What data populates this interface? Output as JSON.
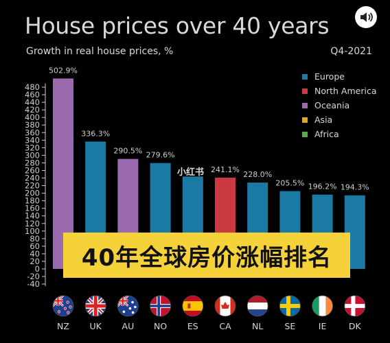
{
  "header": {
    "title": "House prices over 40 years",
    "subtitle": "Growth in real house prices, %",
    "period": "Q4-2021"
  },
  "overlay": {
    "banner_text": "40年全球房价涨幅排名",
    "watermark": "小红书"
  },
  "icons": {
    "sound": "speaker-sound-icon"
  },
  "colors": {
    "Europe": "#1a7aa4",
    "North America": "#c9393f",
    "Oceania": "#9b6bb0",
    "Asia": "#e0a526",
    "Africa": "#5aa847",
    "background": "#000000",
    "banner": "#f5d13a"
  },
  "legend": [
    {
      "label": "Europe",
      "color": "#1a7aa4"
    },
    {
      "label": "North America",
      "color": "#c9393f"
    },
    {
      "label": "Oceania",
      "color": "#9b6bb0"
    },
    {
      "label": "Asia",
      "color": "#e0a526"
    },
    {
      "label": "Africa",
      "color": "#5aa847"
    }
  ],
  "chart_data": {
    "type": "bar",
    "title": "House prices over 40 years",
    "subtitle": "Growth in real house prices, %",
    "categories": [
      "NZ",
      "UK",
      "AU",
      "NO",
      "ES",
      "CA",
      "NL",
      "SE",
      "IE",
      "DK"
    ],
    "values": [
      502.9,
      336.3,
      290.5,
      279.6,
      244.0,
      241.1,
      228.0,
      205.5,
      196.2,
      194.3
    ],
    "value_labels": [
      "502.9%",
      "336.3%",
      "290.5%",
      "279.6%",
      "",
      "241.1%",
      "228.0%",
      "205.5%",
      "196.2%",
      "194.3%"
    ],
    "regions": [
      "Oceania",
      "Europe",
      "Oceania",
      "Europe",
      "Europe",
      "North America",
      "Europe",
      "Europe",
      "Europe",
      "Europe"
    ],
    "flags": [
      "flag-nz-icon",
      "flag-uk-icon",
      "flag-au-icon",
      "flag-no-icon",
      "flag-es-icon",
      "flag-ca-icon",
      "flag-nl-icon",
      "flag-se-icon",
      "flag-ie-icon",
      "flag-dk-icon"
    ],
    "ylim": [
      -40,
      500
    ],
    "yticks": [
      -40,
      -20,
      0,
      20,
      40,
      60,
      80,
      100,
      120,
      140,
      160,
      180,
      200,
      220,
      240,
      260,
      280,
      300,
      320,
      340,
      360,
      380,
      400,
      420,
      440,
      460,
      480
    ],
    "grid": false,
    "legend_position": "top-right"
  }
}
